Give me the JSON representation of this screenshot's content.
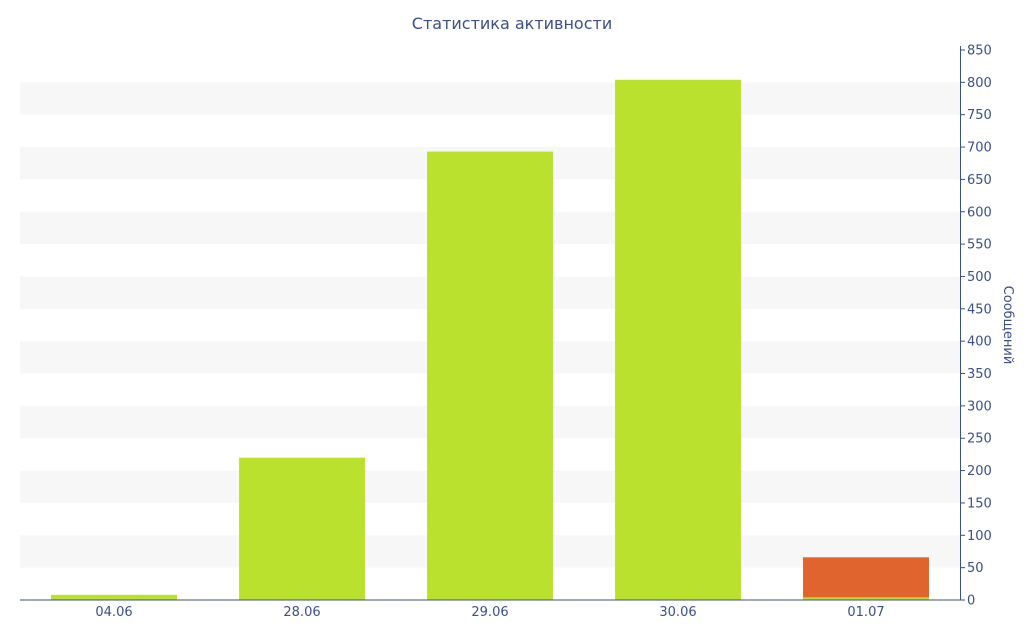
{
  "chart_data": {
    "type": "bar",
    "title": "Статистика активности",
    "ylabel": "Сообщений",
    "xlabel": "",
    "categories": [
      "04.06",
      "28.06",
      "29.06",
      "30.06",
      "01.07"
    ],
    "series": [
      {
        "values": [
          8,
          220,
          693,
          804,
          4
        ],
        "color": "#bbe12f"
      },
      {
        "values": [
          0,
          0,
          0,
          0,
          62
        ],
        "color": "#e0642e"
      }
    ],
    "stacked": true,
    "ylim": [
      0,
      850
    ],
    "yticks": [
      0,
      50,
      100,
      150,
      200,
      250,
      300,
      350,
      400,
      450,
      500,
      550,
      600,
      650,
      700,
      750,
      800,
      850
    ],
    "y_axis_side": "right",
    "grid": "alternating horizontal bands",
    "band_color": "#f7f7f7",
    "text_color": "#3b4f8a",
    "axis_color": "#3b4f8a",
    "legend": "none"
  }
}
